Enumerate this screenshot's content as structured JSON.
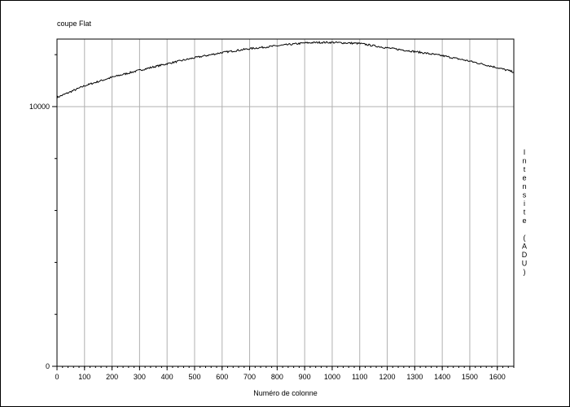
{
  "chart_data": {
    "type": "line",
    "title": "coupe Flat",
    "xlabel": "Numéro de colonne",
    "ylabel": "Intensite (ADU)",
    "xlim": [
      0,
      1660
    ],
    "ylim": [
      0,
      12600
    ],
    "x_ticks": [
      0,
      100,
      200,
      300,
      400,
      500,
      600,
      700,
      800,
      900,
      1000,
      1100,
      1200,
      1300,
      1400,
      1500,
      1600
    ],
    "y_ticks": [
      0,
      10000
    ],
    "grid": true,
    "series": [
      {
        "x": [
          0,
          100,
          200,
          300,
          400,
          500,
          600,
          700,
          800,
          900,
          950,
          1000,
          1100,
          1200,
          1300,
          1400,
          1500,
          1600,
          1660
        ],
        "y": [
          10350,
          10800,
          11130,
          11400,
          11650,
          11880,
          12080,
          12230,
          12340,
          12450,
          12470,
          12470,
          12430,
          12260,
          12120,
          11960,
          11750,
          11500,
          11330
        ]
      }
    ]
  }
}
